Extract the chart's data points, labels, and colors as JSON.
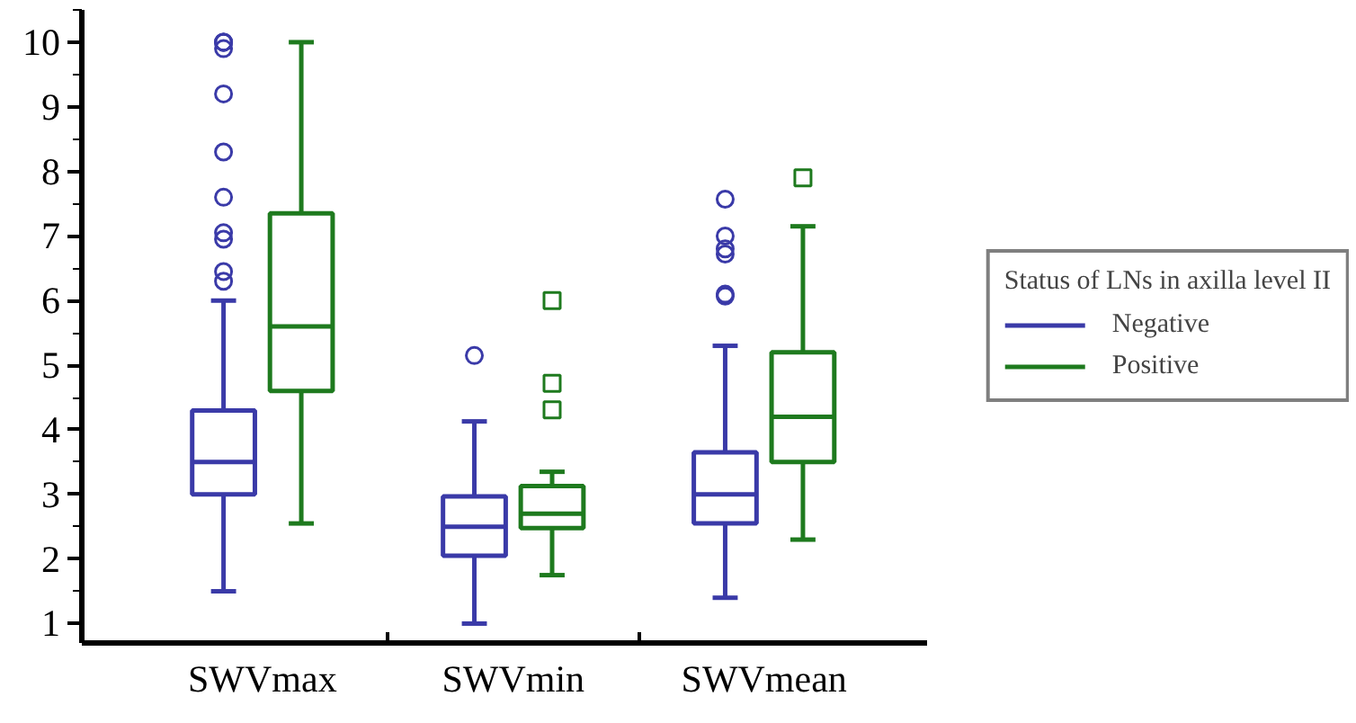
{
  "chart_data": {
    "type": "box",
    "categories": [
      "SWVmax",
      "SWVmin",
      "SWVmean"
    ],
    "legend_title": "Status of LNs in axilla level II",
    "legend": "right",
    "grid": false,
    "ylim": [
      0.7,
      10.5
    ],
    "yticks": [
      1,
      2,
      3,
      4,
      5,
      6,
      7,
      8,
      9,
      10
    ],
    "series": [
      {
        "name": "Negative",
        "color": "#3a3aa8",
        "marker": "circle",
        "boxes": [
          {
            "low": 1.5,
            "q1": 3.0,
            "median": 3.5,
            "q3": 4.3,
            "high": 6.0,
            "outliers": [
              6.3,
              6.45,
              6.95,
              7.05,
              7.6,
              8.3,
              9.2,
              9.9,
              10.0,
              10.0,
              10.0
            ]
          },
          {
            "low": 1.0,
            "q1": 2.05,
            "median": 2.5,
            "q3": 2.97,
            "high": 4.13,
            "outliers": [
              5.15
            ]
          },
          {
            "low": 1.4,
            "q1": 2.55,
            "median": 3.0,
            "q3": 3.65,
            "high": 5.3,
            "outliers": [
              6.07,
              6.1,
              6.72,
              6.8,
              7.0,
              7.57
            ]
          }
        ]
      },
      {
        "name": "Positive",
        "color": "#1e7a1e",
        "marker": "square",
        "boxes": [
          {
            "low": 2.55,
            "q1": 4.6,
            "median": 5.6,
            "q3": 7.35,
            "high": 10.0
          },
          {
            "low": 1.75,
            "q1": 2.48,
            "median": 2.7,
            "q3": 3.13,
            "high": 3.35,
            "outliers": [
              4.31,
              4.72,
              6.0
            ]
          },
          {
            "low": 2.3,
            "q1": 3.5,
            "median": 4.2,
            "q3": 5.2,
            "high": 7.15,
            "outliers": [
              7.9
            ]
          }
        ]
      }
    ]
  }
}
